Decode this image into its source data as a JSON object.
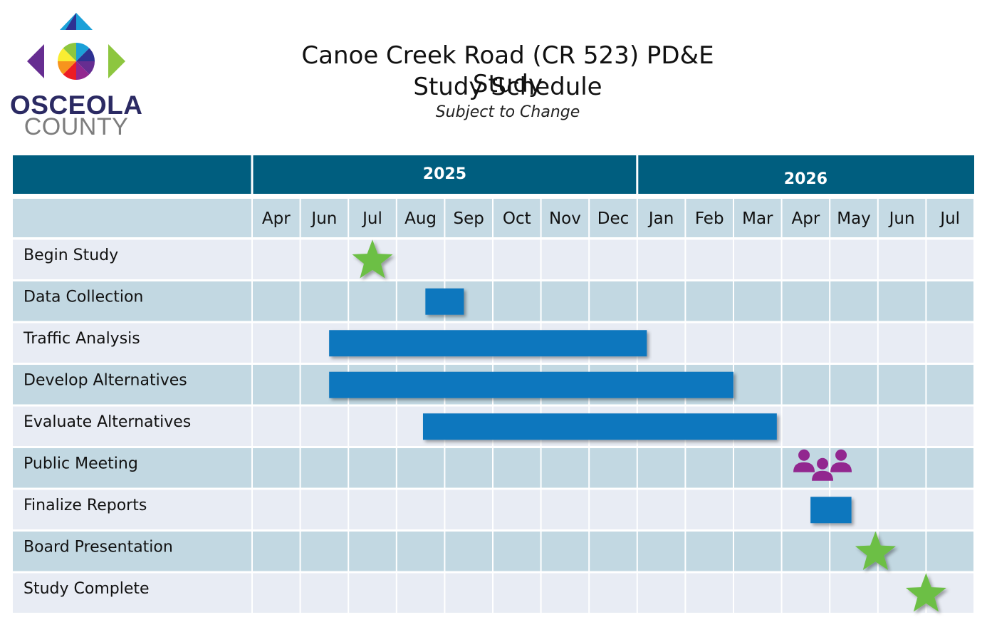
{
  "logo": {
    "line1": "OSCEOLA",
    "line2": "COUNTY",
    "colors": [
      "#1ba0d8",
      "#2e3192",
      "#662d91",
      "#92278f",
      "#ed1c24",
      "#f7941d",
      "#f9ed32",
      "#8dc63f"
    ]
  },
  "header": {
    "title_line1": "Canoe Creek Road (CR 523) PD&E Study",
    "title_line2": "Study Schedule",
    "subtitle": "Subject to Change"
  },
  "colors": {
    "header_bg": "#005e7f",
    "month_row_bg": "#c5dae4",
    "row_light": "#e8ecf4",
    "row_dark": "#c2d8e2",
    "bar": "#1077be",
    "milestone": "#6cbf45",
    "meeting": "#92278f"
  },
  "chart_data": {
    "type": "gantt",
    "years": [
      {
        "label": "2025",
        "months": [
          "Apr",
          "Jun",
          "Jul",
          "Aug",
          "Sep",
          "Oct",
          "Nov",
          "Dec"
        ]
      },
      {
        "label": "2026",
        "months": [
          "Jan",
          "Feb",
          "Mar",
          "Apr",
          "May",
          "Jun",
          "Jul"
        ]
      }
    ],
    "columns": [
      "Apr",
      "Jun",
      "Jul",
      "Aug",
      "Sep",
      "Oct",
      "Nov",
      "Dec",
      "Jan",
      "Feb",
      "Mar",
      "Apr",
      "May",
      "Jun",
      "Jul"
    ],
    "tasks": [
      {
        "name": "Begin Study",
        "kind": "milestone",
        "at": 2.5
      },
      {
        "name": "Data Collection",
        "kind": "bar",
        "start": 3.6,
        "end": 4.4
      },
      {
        "name": "Traffic Analysis",
        "kind": "bar",
        "start": 1.6,
        "end": 8.2
      },
      {
        "name": "Develop Alternatives",
        "kind": "bar",
        "start": 1.6,
        "end": 10.0
      },
      {
        "name": "Evaluate Alternatives",
        "kind": "bar",
        "start": 3.55,
        "end": 10.9
      },
      {
        "name": "Public Meeting",
        "kind": "meeting",
        "at": 11.85
      },
      {
        "name": "Finalize Reports",
        "kind": "bar",
        "start": 11.6,
        "end": 12.45
      },
      {
        "name": "Board Presentation",
        "kind": "milestone",
        "at": 12.95
      },
      {
        "name": "Study Complete",
        "kind": "milestone",
        "at": 14.0
      }
    ]
  }
}
